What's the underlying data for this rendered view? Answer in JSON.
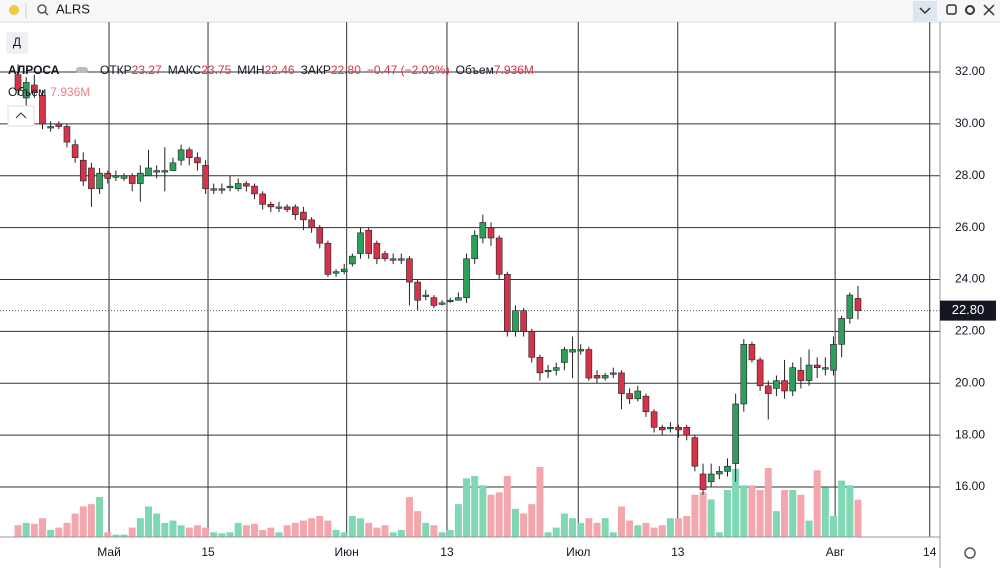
{
  "search": "ALRS",
  "interval_button": "Д",
  "chart_data": {
    "type": "candlestick",
    "title": "АЛРОСА",
    "ohlc_legend": [
      {
        "label": "ОТКР",
        "value": "23.27"
      },
      {
        "label": "МАКС",
        "value": "23.75"
      },
      {
        "label": "МИН",
        "value": "22.46"
      },
      {
        "label": "ЗАКР",
        "value": "22.80"
      }
    ],
    "change": "−0.47 (−2.02%)",
    "volume_legend": {
      "label": "Объем",
      "value": "7.936M"
    },
    "last_price_label": "22.80",
    "up_color": "#2e9e5b",
    "down_color": "#d6334a",
    "volume_up_color": "#7fd8b3",
    "volume_down_color": "#f4a6ad",
    "grid": true,
    "ylim": [
      14.07,
      33.93
    ],
    "yticks": [
      {
        "value": 16,
        "label": "16.00"
      },
      {
        "value": 18,
        "label": "18.00"
      },
      {
        "value": 20,
        "label": "20.00"
      },
      {
        "value": 22,
        "label": "22.00"
      },
      {
        "value": 24,
        "label": "24.00"
      },
      {
        "value": 26,
        "label": "26.00"
      },
      {
        "value": 28,
        "label": "28.00"
      },
      {
        "value": 30,
        "label": "30.00"
      },
      {
        "value": 32,
        "label": "32.00"
      }
    ],
    "xlim": [
      -2.21,
      113.06
    ],
    "xticks": [
      {
        "value": 11.16,
        "label": "Май"
      },
      {
        "value": 23.3,
        "label": "15"
      },
      {
        "value": 40.3,
        "label": "Июн"
      },
      {
        "value": 52.6,
        "label": "13"
      },
      {
        "value": 68.7,
        "label": "Июл"
      },
      {
        "value": 80.9,
        "label": "13"
      },
      {
        "value": 100.2,
        "label": "Авг"
      },
      {
        "value": 111.8,
        "label": "14"
      }
    ],
    "open": [
      31.9,
      31.0,
      31.5,
      31.1,
      29.9,
      30.0,
      29.9,
      29.2,
      28.6,
      28.3,
      27.5,
      28.1,
      28.0,
      27.9,
      28.0,
      27.7,
      28.0,
      28.2,
      28.2,
      28.2,
      28.6,
      29.0,
      28.7,
      28.4,
      27.5,
      27.5,
      27.6,
      27.5,
      27.7,
      27.6,
      27.3,
      26.9,
      26.8,
      26.8,
      26.8,
      26.6,
      26.3,
      26.0,
      25.4,
      24.3,
      24.3,
      24.6,
      25.0,
      25.9,
      25.4,
      25.0,
      24.8,
      24.8,
      24.8,
      23.9,
      23.4,
      23.3,
      23.1,
      23.2,
      23.2,
      23.3,
      24.8,
      25.6,
      26.0,
      25.6,
      24.2,
      22.0,
      22.8,
      22.0,
      21.0,
      20.5,
      20.5,
      20.8,
      21.2,
      21.3,
      21.3,
      20.3,
      20.2,
      20.4,
      20.4,
      19.6,
      19.4,
      19.5,
      18.9,
      18.3,
      18.3,
      18.3,
      18.3,
      17.9,
      16.5,
      16.2,
      16.5,
      16.6,
      16.9,
      19.2,
      21.5,
      20.9,
      19.9,
      19.8,
      20.1,
      19.7,
      20.5,
      20.1,
      20.7,
      20.6,
      20.5,
      21.5,
      22.5,
      23.27
    ],
    "high": [
      32.3,
      31.8,
      31.9,
      31.3,
      30.1,
      30.1,
      30.0,
      29.4,
      28.9,
      28.5,
      28.3,
      28.2,
      28.2,
      28.1,
      28.1,
      28.4,
      29.0,
      28.4,
      29.1,
      28.7,
      29.2,
      29.1,
      28.9,
      28.6,
      27.7,
      27.7,
      28.0,
      27.9,
      27.8,
      27.7,
      27.4,
      27.0,
      27.0,
      26.9,
      26.9,
      26.8,
      26.4,
      26.1,
      25.5,
      24.4,
      24.6,
      25.0,
      26.0,
      26.0,
      25.5,
      25.1,
      25.0,
      25.0,
      24.9,
      24.0,
      23.6,
      23.4,
      23.2,
      23.3,
      23.5,
      25.0,
      25.9,
      26.5,
      26.2,
      25.7,
      24.3,
      23.0,
      22.9,
      22.1,
      21.1,
      20.7,
      20.8,
      21.4,
      21.8,
      21.5,
      21.4,
      20.5,
      20.4,
      20.6,
      20.5,
      19.8,
      19.9,
      19.6,
      19.0,
      18.4,
      18.5,
      18.4,
      18.4,
      18.0,
      16.9,
      16.9,
      16.8,
      17.1,
      19.6,
      21.7,
      21.6,
      21.0,
      20.1,
      20.3,
      20.9,
      20.8,
      21.0,
      21.3,
      21.0,
      21.0,
      21.8,
      22.6,
      23.5,
      23.75
    ],
    "low": [
      31.1,
      30.7,
      31.0,
      29.8,
      29.7,
      29.8,
      29.1,
      28.5,
      27.6,
      26.8,
      27.3,
      27.7,
      27.8,
      27.8,
      27.4,
      27.0,
      28.0,
      27.9,
      27.4,
      28.2,
      28.4,
      28.4,
      28.2,
      27.3,
      27.3,
      27.3,
      27.4,
      27.4,
      27.4,
      27.1,
      26.7,
      26.6,
      26.6,
      26.6,
      26.3,
      25.9,
      25.8,
      25.2,
      24.1,
      24.1,
      24.2,
      24.5,
      24.8,
      24.8,
      24.6,
      24.7,
      24.6,
      24.6,
      23.0,
      22.8,
      23.2,
      22.9,
      23.0,
      23.1,
      23.2,
      23.1,
      24.6,
      25.4,
      25.3,
      24.0,
      21.8,
      21.8,
      21.8,
      20.8,
      20.1,
      20.2,
      20.3,
      20.5,
      20.2,
      21.1,
      20.1,
      20.0,
      20.1,
      20.2,
      19.0,
      19.2,
      19.3,
      18.7,
      18.1,
      18.0,
      18.1,
      17.9,
      17.8,
      16.6,
      15.7,
      16.0,
      16.3,
      16.4,
      16.2,
      18.9,
      20.8,
      19.7,
      18.6,
      19.5,
      19.4,
      19.5,
      19.8,
      19.9,
      20.2,
      20.3,
      20.3,
      21.0,
      22.3,
      22.46
    ],
    "close": [
      31.3,
      31.6,
      31.2,
      30.0,
      29.9,
      29.9,
      29.3,
      28.7,
      27.8,
      27.5,
      28.1,
      27.9,
      28.0,
      28.0,
      27.7,
      28.1,
      28.3,
      28.2,
      28.2,
      28.5,
      29.0,
      28.7,
      28.5,
      27.5,
      27.5,
      27.5,
      27.6,
      27.7,
      27.6,
      27.3,
      26.9,
      26.8,
      26.8,
      26.7,
      26.5,
      26.3,
      26.0,
      25.4,
      24.2,
      24.3,
      24.4,
      24.9,
      25.8,
      25.0,
      24.8,
      24.8,
      24.8,
      24.8,
      23.9,
      23.2,
      23.4,
      23.0,
      23.1,
      23.2,
      23.3,
      24.8,
      25.7,
      26.2,
      25.6,
      24.2,
      22.0,
      22.8,
      22.0,
      21.0,
      20.4,
      20.5,
      20.6,
      21.3,
      21.3,
      21.3,
      20.2,
      20.2,
      20.3,
      20.4,
      19.6,
      19.4,
      19.7,
      18.9,
      18.3,
      18.2,
      18.3,
      18.2,
      18.0,
      16.8,
      15.9,
      16.5,
      16.6,
      16.8,
      19.2,
      21.5,
      20.9,
      19.9,
      19.6,
      20.1,
      19.7,
      20.6,
      20.1,
      20.7,
      20.6,
      20.6,
      21.5,
      22.5,
      23.4,
      22.8
    ],
    "volume": [
      2.5,
      3.0,
      2.8,
      4.0,
      1.5,
      2.0,
      3.0,
      5.0,
      6.5,
      7.0,
      8.5,
      1.0,
      0.5,
      0.5,
      2.0,
      4.0,
      6.5,
      5.0,
      3.0,
      3.5,
      2.5,
      2.0,
      2.5,
      2.0,
      1.0,
      0.8,
      1.0,
      3.0,
      2.5,
      2.8,
      1.5,
      2.0,
      1.0,
      2.5,
      3.0,
      3.5,
      4.0,
      4.5,
      3.5,
      1.5,
      1.0,
      4.5,
      4.0,
      3.0,
      2.0,
      2.5,
      1.0,
      1.5,
      8.5,
      5.5,
      3.0,
      2.5,
      1.0,
      1.5,
      7.0,
      12.5,
      13.0,
      11.0,
      9.0,
      9.5,
      13.0,
      6.0,
      5.0,
      7.0,
      14.9,
      1.0,
      2.0,
      5.0,
      4.0,
      3.0,
      4.0,
      3.0,
      4.0,
      1.0,
      6.5,
      3.5,
      2.5,
      3.0,
      2.0,
      2.5,
      4.0,
      4.0,
      4.5,
      9.0,
      9.5,
      8.0,
      1.0,
      10.0,
      14.5,
      11.0,
      11.0,
      10.0,
      14.7,
      5.5,
      10.0,
      10.0,
      9.0,
      3.5,
      14.2,
      10.5,
      4.5,
      12.0,
      11.0,
      7.936
    ]
  }
}
